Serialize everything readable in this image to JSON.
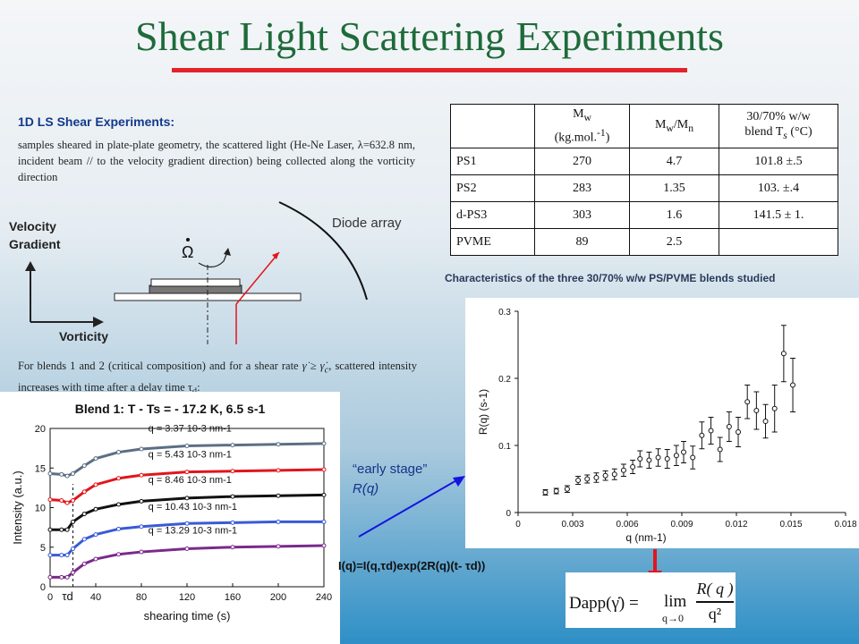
{
  "title": "Shear Light Scattering Experiments",
  "intro": {
    "heading": "1D LS Shear Experiments:",
    "text": "samples sheared in plate-plate geometry, the scattered light (He-Ne Laser, λ=632.8 nm, incident beam // to the velocity gradient direction) being collected along the vorticity direction"
  },
  "geometry": {
    "velocity_gradient": "Velocity\nGradient",
    "vorticity": "Vorticity",
    "diode_array": "Diode array",
    "omega_symbol": "Ω"
  },
  "shear_condition": {
    "text_before": "For blends 1 and 2 (critical composition) and for a shear rate",
    "text_after": "scattered intensity increases with time after a delay time τ",
    "subscript": "d",
    "colon": ":"
  },
  "table": {
    "headers": [
      "",
      "Mw (kg.mol.-1)",
      "Mw/Mn",
      "30/70% w/w blend Ts (°C)"
    ],
    "header_parts": {
      "mw": "M",
      "mw_sub": "w",
      "unit": "(kg.mol.",
      "unit_sup": "-1",
      "unit_close": ")",
      "ratio_m1": "M",
      "ratio_s1": "w",
      "ratio_slash": "/M",
      "ratio_s2": "n",
      "blend_l1": "30/70% w/w",
      "blend_l2": "blend T",
      "blend_sub": "s",
      "blend_unit": " (°C)"
    },
    "rows": [
      {
        "name": "PS1",
        "mw": "270",
        "ratio": "4.7",
        "ts": "101.8 ±.5"
      },
      {
        "name": "PS2",
        "mw": "283",
        "ratio": "1.35",
        "ts": "103. ±.4"
      },
      {
        "name": "d-PS3",
        "mw": "303",
        "ratio": "1.6",
        "ts": "141.5 ± 1."
      },
      {
        "name": "PVME",
        "mw": "89",
        "ratio": "2.5",
        "ts": ""
      }
    ],
    "caption": "Characteristics of the three 30/70% w/w PS/PVME blends studied"
  },
  "early_stage": {
    "line1": "“early stage”",
    "line2": "R(q)"
  },
  "growth_formula": "I(q)=I(q,τd)exp(2R(q)(t- τd))",
  "dapp_formula": {
    "lhs": "Dapp(γ̇) =",
    "lim": "lim",
    "under": "q→0",
    "num": "R( q )",
    "den": "q²"
  },
  "chart_data": [
    {
      "type": "line",
      "title": "Blend 1: T - Ts = - 17.2 K, 6.5 s-1",
      "xlabel": "shearing time (s)",
      "ylabel": "Intensity (a.u.)",
      "xlim": [
        0,
        240
      ],
      "ylim": [
        0,
        20
      ],
      "xticks": [
        "0",
        "40",
        "80",
        "120",
        "160",
        "200",
        "240"
      ],
      "yticks": [
        "0",
        "5",
        "10",
        "15",
        "20"
      ],
      "annotation": "τd",
      "annotation_x": 20,
      "series": [
        {
          "name": "q = 3.37 10-3 nm-1",
          "color": "#5b6f84",
          "t": [
            0,
            10,
            15,
            20,
            30,
            40,
            60,
            80,
            120,
            160,
            200,
            240
          ],
          "y": [
            14.3,
            14.2,
            14.0,
            14.3,
            15.3,
            16.2,
            17.0,
            17.4,
            17.8,
            17.9,
            18.0,
            18.1
          ]
        },
        {
          "name": "q = 5.43 10-3 nm-1",
          "color": "#e2151c",
          "t": [
            0,
            10,
            15,
            20,
            30,
            40,
            60,
            80,
            120,
            160,
            200,
            240
          ],
          "y": [
            11.0,
            10.9,
            10.6,
            10.9,
            12.0,
            12.9,
            13.7,
            14.1,
            14.5,
            14.6,
            14.7,
            14.8
          ]
        },
        {
          "name": "q = 8.46 10-3 nm-1",
          "color": "#111111",
          "t": [
            0,
            10,
            15,
            20,
            30,
            40,
            60,
            80,
            120,
            160,
            200,
            240
          ],
          "y": [
            7.2,
            7.2,
            7.2,
            8.2,
            9.2,
            9.8,
            10.4,
            10.8,
            11.2,
            11.4,
            11.5,
            11.6
          ]
        },
        {
          "name": "q = 10.43 10-3 nm-1",
          "color": "#3a5ad6",
          "t": [
            0,
            10,
            15,
            20,
            30,
            40,
            60,
            80,
            120,
            160,
            200,
            240
          ],
          "y": [
            4.0,
            4.0,
            4.0,
            4.8,
            6.0,
            6.6,
            7.3,
            7.6,
            8.0,
            8.1,
            8.2,
            8.2
          ]
        },
        {
          "name": "q = 13.29 10-3 nm-1",
          "color": "#7a2a8a",
          "t": [
            0,
            10,
            15,
            20,
            30,
            40,
            60,
            80,
            120,
            160,
            200,
            240
          ],
          "y": [
            1.2,
            1.2,
            1.2,
            1.8,
            2.9,
            3.5,
            4.1,
            4.4,
            4.8,
            5.0,
            5.1,
            5.2
          ]
        }
      ]
    },
    {
      "type": "scatter",
      "xlabel": "q (nm-1)",
      "ylabel": "R(q) (s-1)",
      "xlim": [
        0,
        0.018
      ],
      "ylim": [
        0,
        0.3
      ],
      "xticks": [
        "0",
        "0.003",
        "0.006",
        "0.009",
        "0.012",
        "0.015",
        "0.018"
      ],
      "yticks": [
        "0",
        "0.1",
        "0.2",
        "0.3"
      ],
      "x": [
        0.0015,
        0.0021,
        0.0027,
        0.0033,
        0.0038,
        0.0043,
        0.0048,
        0.0053,
        0.0058,
        0.0063,
        0.0067,
        0.0072,
        0.0077,
        0.0082,
        0.0087,
        0.0091,
        0.0096,
        0.0101,
        0.0106,
        0.0111,
        0.0116,
        0.0121,
        0.0126,
        0.0131,
        0.0136,
        0.0141,
        0.0146,
        0.0151
      ],
      "y": [
        0.03,
        0.032,
        0.035,
        0.048,
        0.05,
        0.052,
        0.055,
        0.057,
        0.063,
        0.068,
        0.08,
        0.078,
        0.082,
        0.08,
        0.085,
        0.09,
        0.082,
        0.115,
        0.122,
        0.094,
        0.128,
        0.12,
        0.165,
        0.152,
        0.136,
        0.155,
        0.237,
        0.19
      ],
      "err": [
        0.004,
        0.004,
        0.005,
        0.006,
        0.006,
        0.007,
        0.007,
        0.008,
        0.009,
        0.01,
        0.012,
        0.012,
        0.013,
        0.014,
        0.015,
        0.016,
        0.017,
        0.02,
        0.02,
        0.018,
        0.022,
        0.022,
        0.025,
        0.028,
        0.025,
        0.035,
        0.042,
        0.04
      ]
    }
  ]
}
